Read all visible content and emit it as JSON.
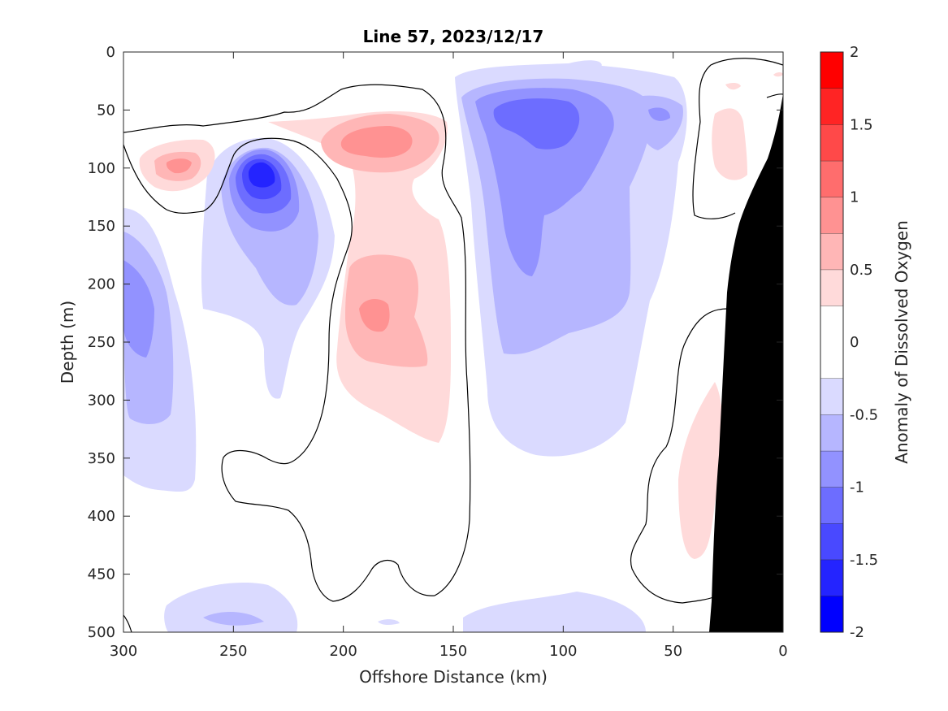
{
  "chart_data": {
    "type": "heatmap",
    "subtype": "filled-contour-section",
    "title": "Line 57, 2023/12/17",
    "xlabel": "Offshore Distance (km)",
    "ylabel": "Depth (m)",
    "colorbar_label": "Anomaly of Dissolved Oxygen",
    "xlim": [
      300,
      0
    ],
    "x_reversed": true,
    "ylim": [
      0,
      500
    ],
    "y_reversed": true,
    "x_ticks": [
      "300",
      "250",
      "200",
      "150",
      "100",
      "50",
      "0"
    ],
    "y_ticks": [
      "0",
      "50",
      "100",
      "150",
      "200",
      "250",
      "300",
      "350",
      "400",
      "450",
      "500"
    ],
    "colorbar_range": [
      -2,
      2
    ],
    "colorbar_ticks": [
      "2",
      "1.5",
      "1",
      "0.5",
      "0",
      "-0.5",
      "-1",
      "-1.5",
      "-2"
    ],
    "contour_levels": [
      -2,
      -1.75,
      -1.5,
      -1.25,
      -1,
      -0.75,
      -0.5,
      -0.25,
      0.25,
      0.5,
      0.75,
      1,
      1.25,
      1.5,
      1.75,
      2
    ],
    "level_colors": [
      "#0000ff",
      "#2424ff",
      "#4949ff",
      "#6d6dff",
      "#9292ff",
      "#b6b6ff",
      "#dadaff",
      "#ffffff",
      "#ffdada",
      "#ffb6b6",
      "#ff9292",
      "#ff6d6d",
      "#ff4949",
      "#ff2424",
      "#ff0000"
    ],
    "zero_contour": true,
    "bathymetry_color": "#000000",
    "features": [
      {
        "sign": "negative",
        "x_km": 236,
        "depth_m": 105,
        "peak": -1.6
      },
      {
        "sign": "negative",
        "x_km": 110,
        "depth_m": 60,
        "peak": -1.2
      },
      {
        "sign": "negative",
        "x_km": 295,
        "depth_m": 220,
        "peak": -0.9
      },
      {
        "sign": "positive",
        "x_km": 182,
        "depth_m": 225,
        "peak": 0.9
      },
      {
        "sign": "positive",
        "x_km": 182,
        "depth_m": 78,
        "peak": 0.8
      },
      {
        "sign": "positive",
        "x_km": 271,
        "depth_m": 100,
        "peak": 0.9
      },
      {
        "sign": "positive",
        "x_km": 25,
        "depth_m": 370,
        "peak": 0.4
      }
    ]
  }
}
